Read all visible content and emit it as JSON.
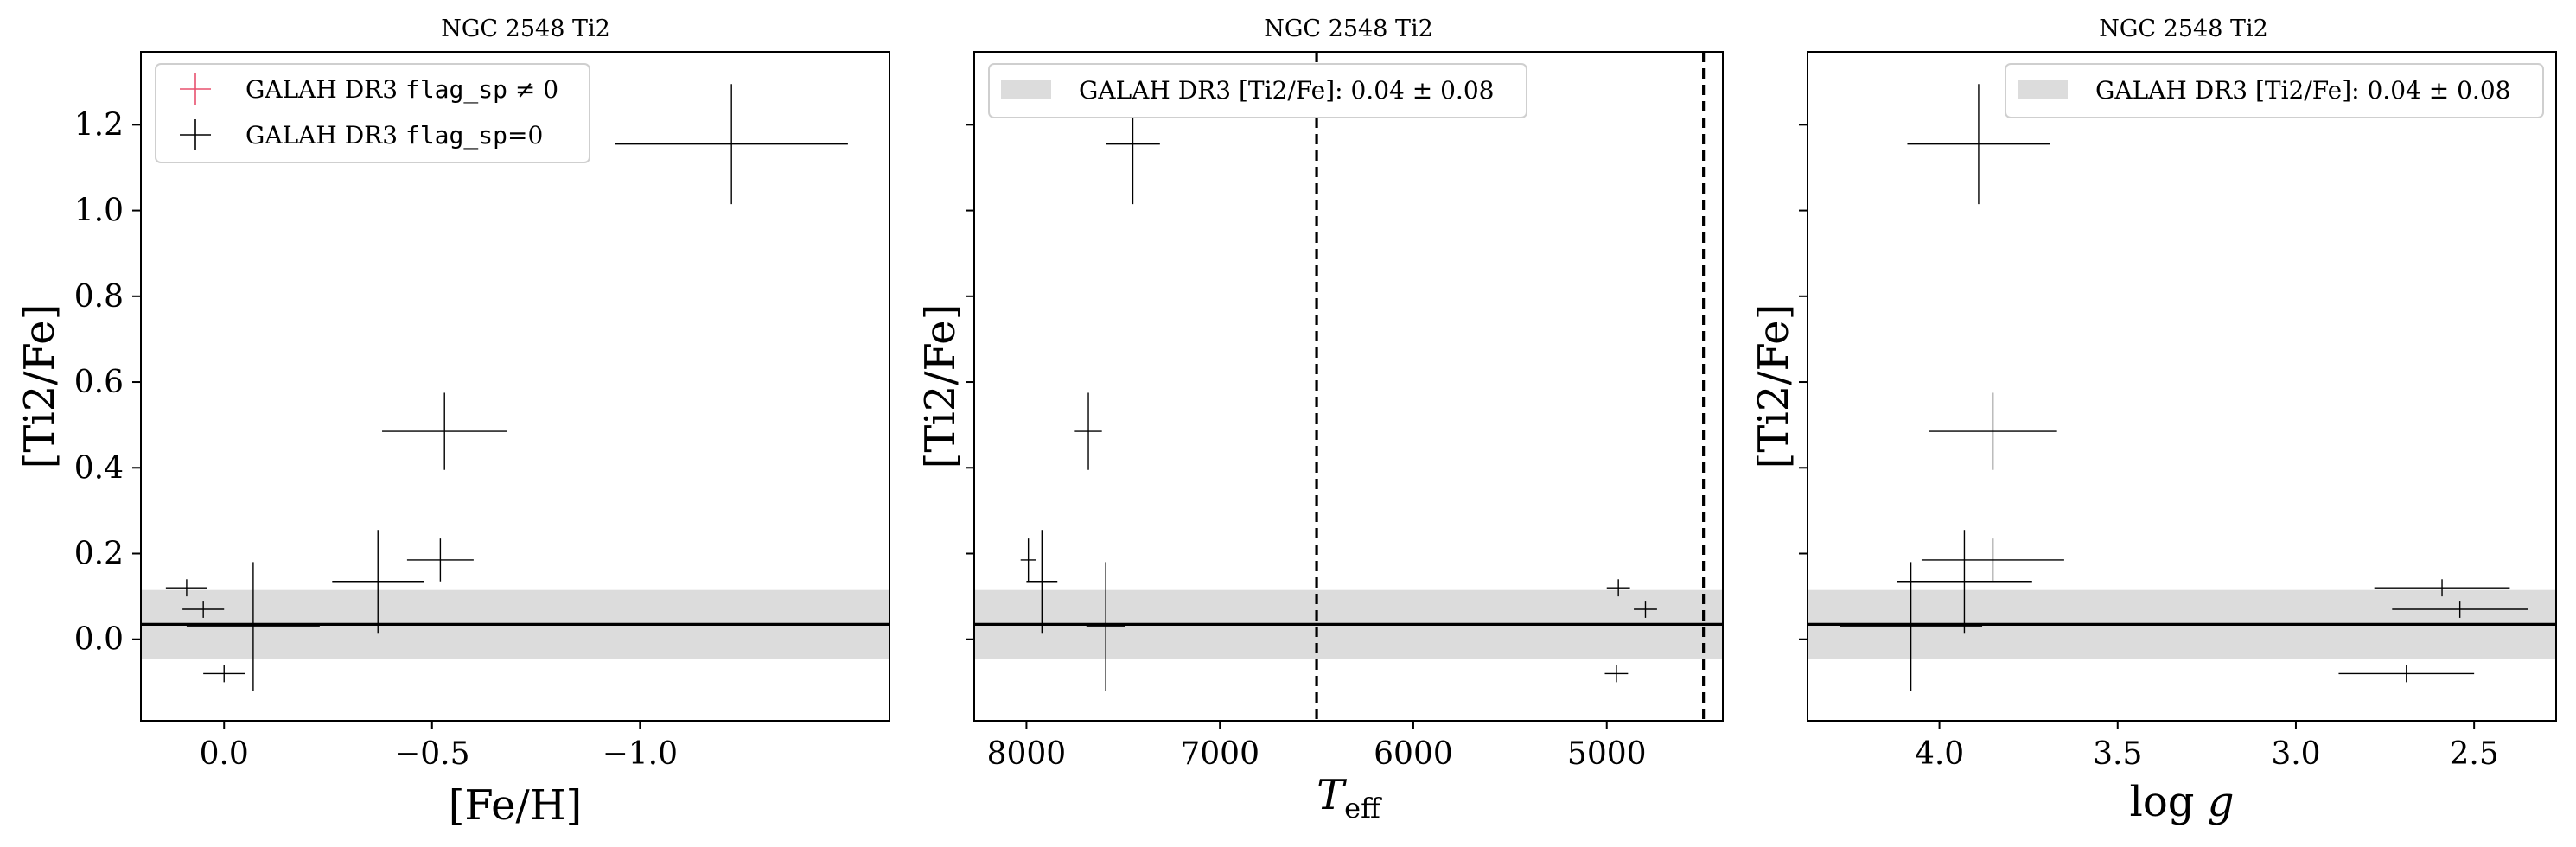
{
  "colors": {
    "errorbar": "#000000",
    "flagged": "#e8506e",
    "band": "#dcdcdc",
    "mean_line": "#000000",
    "teff_limits": "#000000"
  },
  "chart_data": [
    {
      "type": "scatter",
      "title": "NGC 2548 Ti2",
      "xlabel": "[Fe/H]",
      "ylabel": "[Ti2/Fe]",
      "xlim": [
        0.2,
        -1.6
      ],
      "ylim": [
        -0.19,
        1.37
      ],
      "xticks": [
        0.0,
        -0.5,
        -1.0
      ],
      "xtick_labels": [
        "0.0",
        "−0.5",
        "−1.0"
      ],
      "yticks": [
        0.0,
        0.2,
        0.4,
        0.6,
        0.8,
        1.0,
        1.2
      ],
      "ytick_labels": [
        "0.0",
        "0.2",
        "0.4",
        "0.6",
        "0.8",
        "1.0",
        "1.2"
      ],
      "grid": false,
      "legend_placement": "upper-left",
      "legend": [
        {
          "label_pre": "GALAH DR3 ",
          "label_code": "flag_sp",
          "label_post": " ≠ 0",
          "color": "#e8506e"
        },
        {
          "label_pre": "GALAH DR3 ",
          "label_code": "flag_sp",
          "label_post": "=0",
          "color": "#000000"
        }
      ],
      "band": {
        "center": 0.035,
        "halfwidth": 0.08
      },
      "points": [
        {
          "x": -1.22,
          "y": 1.155,
          "xerr": 0.28,
          "yerr": 0.14
        },
        {
          "x": -0.53,
          "y": 0.485,
          "xerr": 0.15,
          "yerr": 0.09
        },
        {
          "x": -0.37,
          "y": 0.135,
          "xerr": 0.11,
          "yerr": 0.12
        },
        {
          "x": -0.52,
          "y": 0.185,
          "xerr": 0.08,
          "yerr": 0.05
        },
        {
          "x": 0.09,
          "y": 0.12,
          "xerr": 0.05,
          "yerr": 0.02
        },
        {
          "x": 0.05,
          "y": 0.07,
          "xerr": 0.05,
          "yerr": 0.02
        },
        {
          "x": 0.0,
          "y": -0.08,
          "xerr": 0.05,
          "yerr": 0.02
        },
        {
          "x": -0.07,
          "y": 0.03,
          "xerr": 0.16,
          "yerr": 0.15
        }
      ]
    },
    {
      "type": "scatter",
      "title": "NGC 2548 Ti2",
      "xlabel": "T_eff",
      "ylabel": "[Ti2/Fe]",
      "xlim": [
        8270,
        4400
      ],
      "ylim": [
        -0.19,
        1.37
      ],
      "xticks": [
        8000,
        7000,
        6000,
        5000
      ],
      "xtick_labels": [
        "8000",
        "7000",
        "6000",
        "5000"
      ],
      "yticks": [
        0.0,
        0.2,
        0.4,
        0.6,
        0.8,
        1.0,
        1.2
      ],
      "grid": false,
      "legend_placement": "upper-left",
      "legend": [
        {
          "label": "GALAH DR3 [Ti2/Fe]: 0.04 ± 0.08",
          "color": "#dcdcdc"
        }
      ],
      "band": {
        "center": 0.035,
        "halfwidth": 0.08
      },
      "vlines": [
        6500,
        4500
      ],
      "points": [
        {
          "x": 7450,
          "y": 1.155,
          "xerr": 140,
          "yerr": 0.14
        },
        {
          "x": 7680,
          "y": 0.485,
          "xerr": 70,
          "yerr": 0.09
        },
        {
          "x": 7990,
          "y": 0.185,
          "xerr": 40,
          "yerr": 0.05
        },
        {
          "x": 7920,
          "y": 0.135,
          "xerr": 80,
          "yerr": 0.12
        },
        {
          "x": 7590,
          "y": 0.03,
          "xerr": 100,
          "yerr": 0.15
        },
        {
          "x": 4940,
          "y": 0.12,
          "xerr": 60,
          "yerr": 0.02
        },
        {
          "x": 4800,
          "y": 0.07,
          "xerr": 60,
          "yerr": 0.02
        },
        {
          "x": 4950,
          "y": -0.08,
          "xerr": 60,
          "yerr": 0.02
        }
      ]
    },
    {
      "type": "scatter",
      "title": "NGC 2548 Ti2",
      "xlabel": "log g",
      "ylabel": "[Ti2/Fe]",
      "xlim": [
        4.37,
        2.27
      ],
      "ylim": [
        -0.19,
        1.37
      ],
      "xticks": [
        4.0,
        3.5,
        3.0,
        2.5
      ],
      "xtick_labels": [
        "4.0",
        "3.5",
        "3.0",
        "2.5"
      ],
      "yticks": [
        0.0,
        0.2,
        0.4,
        0.6,
        0.8,
        1.0,
        1.2
      ],
      "grid": false,
      "legend_placement": "upper-right",
      "legend": [
        {
          "label": "GALAH DR3 [Ti2/Fe]: 0.04 ± 0.08",
          "color": "#dcdcdc"
        }
      ],
      "band": {
        "center": 0.035,
        "halfwidth": 0.08
      },
      "points": [
        {
          "x": 3.89,
          "y": 1.155,
          "xerr": 0.2,
          "yerr": 0.14
        },
        {
          "x": 3.85,
          "y": 0.485,
          "xerr": 0.18,
          "yerr": 0.09
        },
        {
          "x": 3.93,
          "y": 0.135,
          "xerr": 0.19,
          "yerr": 0.12
        },
        {
          "x": 3.85,
          "y": 0.185,
          "xerr": 0.2,
          "yerr": 0.05
        },
        {
          "x": 4.08,
          "y": 0.03,
          "xerr": 0.2,
          "yerr": 0.15
        },
        {
          "x": 2.59,
          "y": 0.12,
          "xerr": 0.19,
          "yerr": 0.02
        },
        {
          "x": 2.54,
          "y": 0.07,
          "xerr": 0.19,
          "yerr": 0.02
        },
        {
          "x": 2.69,
          "y": -0.08,
          "xerr": 0.19,
          "yerr": 0.02
        }
      ]
    }
  ]
}
